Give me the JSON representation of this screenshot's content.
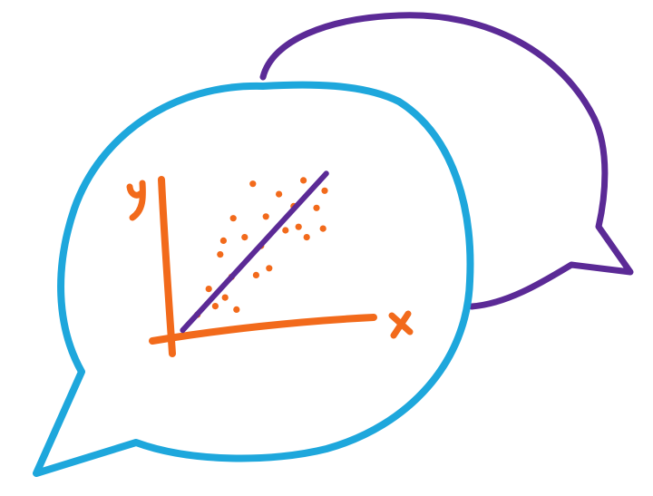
{
  "colors": {
    "background": "#ffffff",
    "front_bubble": "#1ea7dc",
    "back_bubble": "#5b2a96",
    "axes_and_points": "#f26a1b",
    "trend_line": "#5b2a96"
  },
  "icons": {
    "front_bubble": "speech-bubble-icon",
    "back_bubble": "speech-bubble-icon",
    "chart": "scatter-plot-icon"
  },
  "chart_data": {
    "type": "scatter",
    "xlabel": "x",
    "ylabel": "y",
    "xlim": [
      0,
      10
    ],
    "ylim": [
      0,
      10
    ],
    "grid": false,
    "points": [
      {
        "x": 1.2,
        "y": 1.1
      },
      {
        "x": 1.9,
        "y": 2.6
      },
      {
        "x": 2.3,
        "y": 1.6
      },
      {
        "x": 2.9,
        "y": 2.1
      },
      {
        "x": 3.6,
        "y": 1.4
      },
      {
        "x": 3.3,
        "y": 3.3
      },
      {
        "x": 2.6,
        "y": 4.6
      },
      {
        "x": 2.8,
        "y": 5.4
      },
      {
        "x": 3.4,
        "y": 6.7
      },
      {
        "x": 4.1,
        "y": 5.6
      },
      {
        "x": 4.8,
        "y": 3.4
      },
      {
        "x": 5.1,
        "y": 5.1
      },
      {
        "x": 5.6,
        "y": 3.8
      },
      {
        "x": 5.4,
        "y": 6.8
      },
      {
        "x": 6.2,
        "y": 8.1
      },
      {
        "x": 6.6,
        "y": 6.0
      },
      {
        "x": 7.1,
        "y": 7.4
      },
      {
        "x": 7.7,
        "y": 8.9
      },
      {
        "x": 7.9,
        "y": 5.6
      },
      {
        "x": 7.4,
        "y": 6.2
      },
      {
        "x": 8.5,
        "y": 7.3
      },
      {
        "x": 8.9,
        "y": 6.1
      },
      {
        "x": 4.6,
        "y": 8.7
      },
      {
        "x": 9.0,
        "y": 8.3
      }
    ],
    "trend_line": {
      "x": [
        0.3,
        9.1
      ],
      "y": [
        0.2,
        9.3
      ]
    }
  }
}
